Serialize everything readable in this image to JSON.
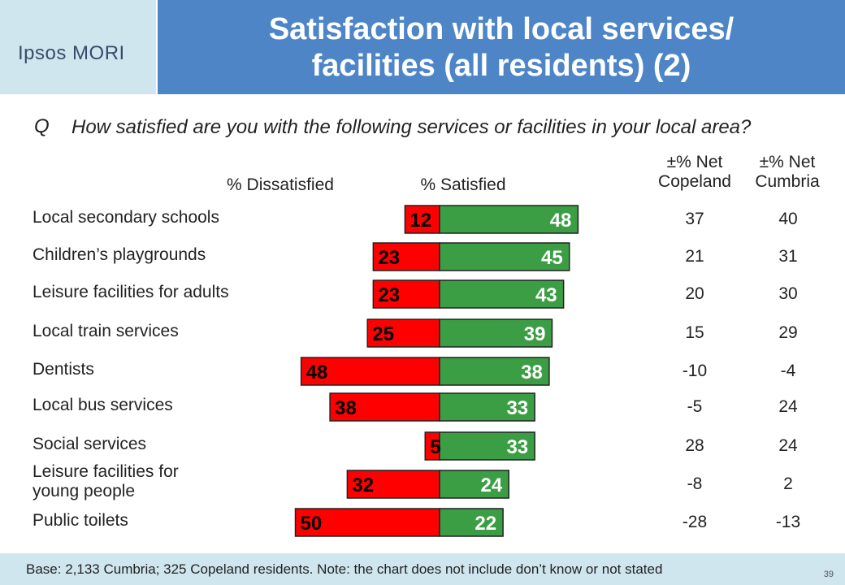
{
  "header": {
    "logo_text": "Ipsos MORI",
    "title_line1": "Satisfaction with local services/",
    "title_line2": "facilities (all residents) (2)"
  },
  "question": {
    "prefix": "Q",
    "text": "How satisfied are you with the following services or facilities in your local area?"
  },
  "column_headers": {
    "dissatisfied": "% Dissatisfied",
    "satisfied": "% Satisfied",
    "net_copeland": "±% Net Copeland",
    "net_cumbria": "±% Net Cumbria"
  },
  "colors": {
    "dissatisfied": "#ff0000",
    "satisfied": "#3c9e44",
    "title_bar": "#4d85c7",
    "logo_bg": "#cfe6ee"
  },
  "chart_data": {
    "type": "bar",
    "orientation": "horizontal-diverging",
    "categories": [
      "Local secondary schools",
      "Children’s playgrounds",
      "Leisure facilities for adults",
      "Local train services",
      "Dentists",
      "Local bus services",
      "Social services",
      "Leisure facilities for young people",
      "Public toilets"
    ],
    "series": [
      {
        "name": "% Dissatisfied",
        "values": [
          12,
          23,
          23,
          25,
          48,
          38,
          5,
          32,
          50
        ]
      },
      {
        "name": "% Satisfied",
        "values": [
          48,
          45,
          43,
          39,
          38,
          33,
          33,
          24,
          22
        ]
      }
    ],
    "net_copeland": [
      "37",
      "21",
      "20",
      "15",
      "-10",
      "-5",
      "28",
      "-8",
      "-28"
    ],
    "net_cumbria": [
      "40",
      "31",
      "30",
      "29",
      "-4",
      "24",
      "24",
      "2",
      "-13"
    ],
    "legend": "none",
    "grid": false
  },
  "footer": {
    "base_note": "Base: 2,133 Cumbria; 325 Copeland residents. Note: the chart does not include don’t know or not stated",
    "page_number": "39"
  }
}
